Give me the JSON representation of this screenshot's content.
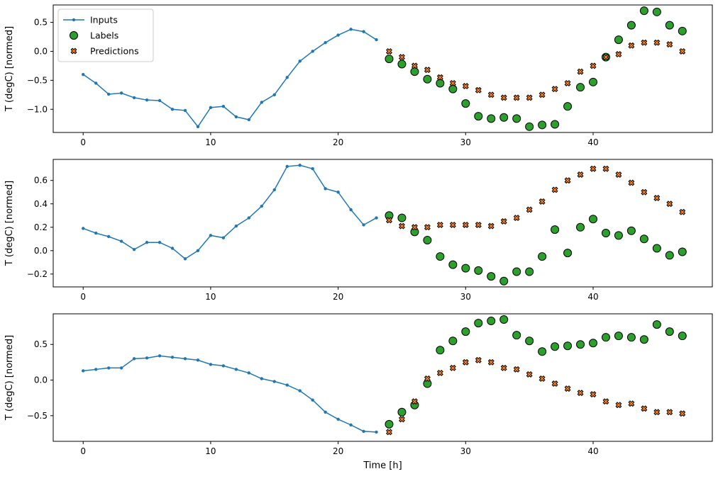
{
  "figure": {
    "xlabel": "Time [h]",
    "ylabel": "T (degC) [normed]",
    "legend": {
      "position": "upper left",
      "entries": [
        "Inputs",
        "Labels",
        "Predictions"
      ]
    },
    "grid": false
  },
  "colors": {
    "inputs": "#1f77b4",
    "labels": "#2ca02c",
    "predictions": "#ff7f0e",
    "marker_edge": "#000000",
    "legend_border": "#cccccc",
    "axes": "#000000"
  },
  "chart_data": [
    {
      "type": "line",
      "ylabel": "T (degC) [normed]",
      "xlim": [
        -2.35,
        49.35
      ],
      "ylim": [
        -1.4,
        0.8
      ],
      "xticks": [
        0,
        10,
        20,
        30,
        40
      ],
      "yticks": [
        0.5,
        0.0,
        -0.5,
        -1.0
      ],
      "series": [
        {
          "name": "Inputs",
          "marker": "dot-line",
          "x_start": 0,
          "values": [
            -0.4,
            -0.55,
            -0.74,
            -0.72,
            -0.8,
            -0.84,
            -0.85,
            -1.0,
            -1.02,
            -1.3,
            -0.97,
            -0.95,
            -1.13,
            -1.18,
            -0.88,
            -0.75,
            -0.45,
            -0.17,
            0.0,
            0.15,
            0.28,
            0.38,
            0.34,
            0.2
          ]
        },
        {
          "name": "Labels",
          "marker": "circle",
          "x_start": 24,
          "values": [
            -0.13,
            -0.22,
            -0.35,
            -0.48,
            -0.55,
            -0.65,
            -0.9,
            -1.12,
            -1.16,
            -1.14,
            -1.16,
            -1.3,
            -1.27,
            -1.26,
            -0.95,
            -0.62,
            -0.53,
            -0.1,
            0.2,
            0.45,
            0.7,
            0.68,
            0.45,
            0.35
          ]
        },
        {
          "name": "Predictions",
          "marker": "X",
          "x_start": 24,
          "values": [
            0.0,
            -0.1,
            -0.25,
            -0.32,
            -0.45,
            -0.55,
            -0.6,
            -0.67,
            -0.75,
            -0.8,
            -0.8,
            -0.8,
            -0.75,
            -0.65,
            -0.55,
            -0.35,
            -0.25,
            -0.1,
            -0.05,
            0.1,
            0.15,
            0.15,
            0.12,
            0.0
          ]
        }
      ]
    },
    {
      "type": "line",
      "ylabel": "T (degC) [normed]",
      "xlim": [
        -2.35,
        49.35
      ],
      "ylim": [
        -0.31,
        0.78
      ],
      "xticks": [
        0,
        10,
        20,
        30,
        40
      ],
      "yticks": [
        0.6,
        0.4,
        0.2,
        0.0,
        -0.2
      ],
      "series": [
        {
          "name": "Inputs",
          "marker": "dot-line",
          "x_start": 0,
          "values": [
            0.19,
            0.15,
            0.12,
            0.08,
            0.01,
            0.07,
            0.07,
            0.02,
            -0.07,
            0.0,
            0.13,
            0.11,
            0.21,
            0.28,
            0.38,
            0.52,
            0.72,
            0.73,
            0.7,
            0.53,
            0.5,
            0.35,
            0.22,
            0.28
          ]
        },
        {
          "name": "Labels",
          "marker": "circle",
          "x_start": 24,
          "values": [
            0.3,
            0.28,
            0.16,
            0.09,
            -0.05,
            -0.12,
            -0.15,
            -0.17,
            -0.22,
            -0.26,
            -0.18,
            -0.18,
            -0.05,
            0.18,
            -0.02,
            0.2,
            0.27,
            0.15,
            0.13,
            0.17,
            0.1,
            0.02,
            -0.04,
            -0.01
          ]
        },
        {
          "name": "Predictions",
          "marker": "X",
          "x_start": 24,
          "values": [
            0.26,
            0.21,
            0.2,
            0.2,
            0.22,
            0.22,
            0.22,
            0.22,
            0.21,
            0.25,
            0.28,
            0.35,
            0.42,
            0.52,
            0.6,
            0.65,
            0.7,
            0.7,
            0.65,
            0.58,
            0.5,
            0.45,
            0.4,
            0.33
          ]
        }
      ]
    },
    {
      "type": "line",
      "ylabel": "T (degC) [normed]",
      "xlim": [
        -2.35,
        49.35
      ],
      "ylim": [
        -0.86,
        0.93
      ],
      "xticks": [
        0,
        10,
        20,
        30,
        40
      ],
      "yticks": [
        0.5,
        0.0,
        -0.5
      ],
      "series": [
        {
          "name": "Inputs",
          "marker": "dot-line",
          "x_start": 0,
          "values": [
            0.13,
            0.15,
            0.17,
            0.17,
            0.3,
            0.31,
            0.34,
            0.32,
            0.3,
            0.28,
            0.22,
            0.2,
            0.15,
            0.1,
            0.02,
            -0.02,
            -0.07,
            -0.15,
            -0.28,
            -0.45,
            -0.55,
            -0.63,
            -0.72,
            -0.73
          ]
        },
        {
          "name": "Labels",
          "marker": "circle",
          "x_start": 24,
          "values": [
            -0.62,
            -0.45,
            -0.35,
            -0.05,
            0.42,
            0.55,
            0.68,
            0.8,
            0.83,
            0.85,
            0.63,
            0.55,
            0.4,
            0.47,
            0.48,
            0.5,
            0.52,
            0.6,
            0.62,
            0.6,
            0.57,
            0.78,
            0.68,
            0.62
          ]
        },
        {
          "name": "Predictions",
          "marker": "X",
          "x_start": 24,
          "values": [
            -0.73,
            -0.55,
            -0.3,
            0.02,
            0.1,
            0.17,
            0.25,
            0.28,
            0.25,
            0.17,
            0.15,
            0.08,
            0.02,
            -0.05,
            -0.12,
            -0.18,
            -0.2,
            -0.3,
            -0.35,
            -0.33,
            -0.4,
            -0.45,
            -0.45,
            -0.47
          ]
        }
      ]
    }
  ]
}
